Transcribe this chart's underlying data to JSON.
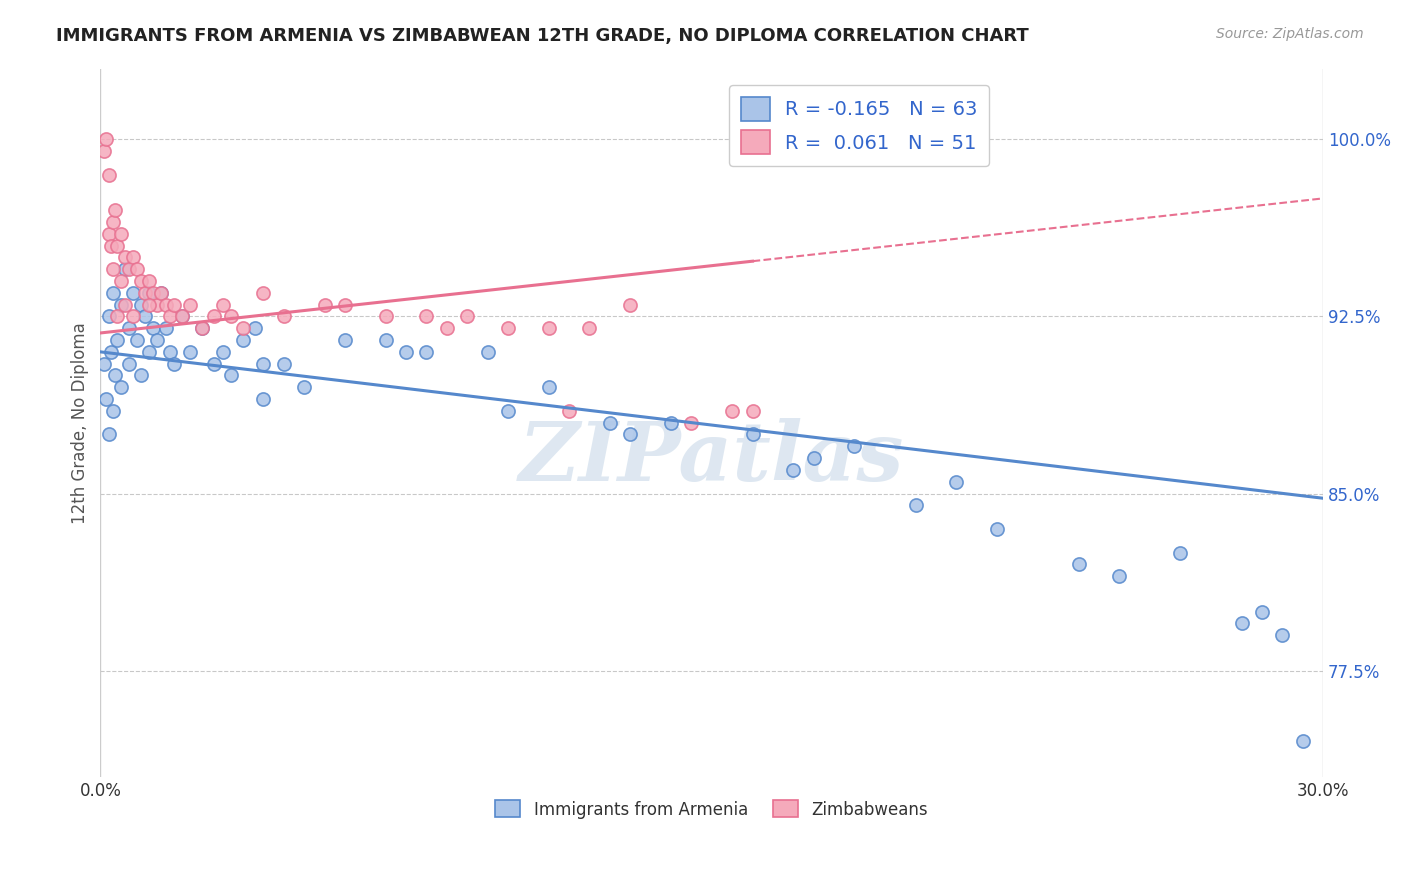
{
  "title": "IMMIGRANTS FROM ARMENIA VS ZIMBABWEAN 12TH GRADE, NO DIPLOMA CORRELATION CHART",
  "source": "Source: ZipAtlas.com",
  "ylabel_label": "12th Grade, No Diploma",
  "legend_blue_r": "R = -0.165",
  "legend_blue_n": "N = 63",
  "legend_pink_r": "R =  0.061",
  "legend_pink_n": "N = 51",
  "legend_blue_label": "Immigrants from Armenia",
  "legend_pink_label": "Zimbabweans",
  "blue_color": "#5588CC",
  "pink_color": "#E87090",
  "blue_face": "#AAC4E8",
  "pink_face": "#F5AABB",
  "title_color": "#222222",
  "source_color": "#999999",
  "axis_label_color": "#555555",
  "tick_color": "#3366CC",
  "watermark_text": "ZIPatlas",
  "watermark_color": "#C8D8E8",
  "xmin": 0.0,
  "xmax": 30.0,
  "yticks": [
    77.5,
    85.0,
    92.5,
    100.0
  ],
  "ytick_labels": [
    "77.5%",
    "85.0%",
    "92.5%",
    "100.0%"
  ],
  "xtick_labels": [
    "0.0%",
    "30.0%"
  ],
  "ymin": 73.0,
  "ymax": 103.0,
  "blue_line_x0": 0.0,
  "blue_line_y0": 91.0,
  "blue_line_x1": 30.0,
  "blue_line_y1": 84.8,
  "pink_line_x0": 0.0,
  "pink_line_y0": 91.8,
  "pink_line_x1": 30.0,
  "pink_line_y1": 97.5,
  "pink_solid_xmax": 16.0,
  "blue_scatter_x": [
    0.1,
    0.15,
    0.2,
    0.2,
    0.25,
    0.3,
    0.3,
    0.35,
    0.4,
    0.5,
    0.5,
    0.6,
    0.7,
    0.7,
    0.8,
    0.9,
    1.0,
    1.0,
    1.1,
    1.2,
    1.2,
    1.3,
    1.4,
    1.5,
    1.6,
    1.7,
    1.8,
    2.0,
    2.2,
    2.5,
    2.8,
    3.0,
    3.2,
    3.5,
    3.8,
    4.0,
    4.0,
    4.5,
    5.0,
    6.0,
    7.0,
    7.5,
    8.0,
    9.5,
    10.0,
    11.0,
    12.5,
    13.0,
    14.0,
    16.0,
    17.0,
    17.5,
    18.5,
    20.0,
    21.0,
    22.0,
    24.0,
    25.0,
    26.5,
    28.0,
    28.5,
    29.0,
    29.5
  ],
  "blue_scatter_y": [
    90.5,
    89.0,
    92.5,
    87.5,
    91.0,
    93.5,
    88.5,
    90.0,
    91.5,
    93.0,
    89.5,
    94.5,
    92.0,
    90.5,
    93.5,
    91.5,
    93.0,
    90.0,
    92.5,
    93.5,
    91.0,
    92.0,
    91.5,
    93.5,
    92.0,
    91.0,
    90.5,
    92.5,
    91.0,
    92.0,
    90.5,
    91.0,
    90.0,
    91.5,
    92.0,
    90.5,
    89.0,
    90.5,
    89.5,
    91.5,
    91.5,
    91.0,
    91.0,
    91.0,
    88.5,
    89.5,
    88.0,
    87.5,
    88.0,
    87.5,
    86.0,
    86.5,
    87.0,
    84.5,
    85.5,
    83.5,
    82.0,
    81.5,
    82.5,
    79.5,
    80.0,
    79.0,
    74.5
  ],
  "pink_scatter_x": [
    0.1,
    0.15,
    0.2,
    0.2,
    0.25,
    0.3,
    0.3,
    0.35,
    0.4,
    0.5,
    0.5,
    0.6,
    0.7,
    0.8,
    0.9,
    1.0,
    1.1,
    1.2,
    1.3,
    1.4,
    1.5,
    1.6,
    1.7,
    1.8,
    2.0,
    2.2,
    2.5,
    2.8,
    3.0,
    3.2,
    3.5,
    4.0,
    4.5,
    5.5,
    6.0,
    7.0,
    8.0,
    8.5,
    9.0,
    10.0,
    11.0,
    11.5,
    12.0,
    13.0,
    14.5,
    15.5,
    16.0,
    0.4,
    0.6,
    0.8,
    1.2
  ],
  "pink_scatter_y": [
    99.5,
    100.0,
    96.0,
    98.5,
    95.5,
    96.5,
    94.5,
    97.0,
    95.5,
    96.0,
    94.0,
    95.0,
    94.5,
    95.0,
    94.5,
    94.0,
    93.5,
    94.0,
    93.5,
    93.0,
    93.5,
    93.0,
    92.5,
    93.0,
    92.5,
    93.0,
    92.0,
    92.5,
    93.0,
    92.5,
    92.0,
    93.5,
    92.5,
    93.0,
    93.0,
    92.5,
    92.5,
    92.0,
    92.5,
    92.0,
    92.0,
    88.5,
    92.0,
    93.0,
    88.0,
    88.5,
    88.5,
    92.5,
    93.0,
    92.5,
    93.0
  ]
}
